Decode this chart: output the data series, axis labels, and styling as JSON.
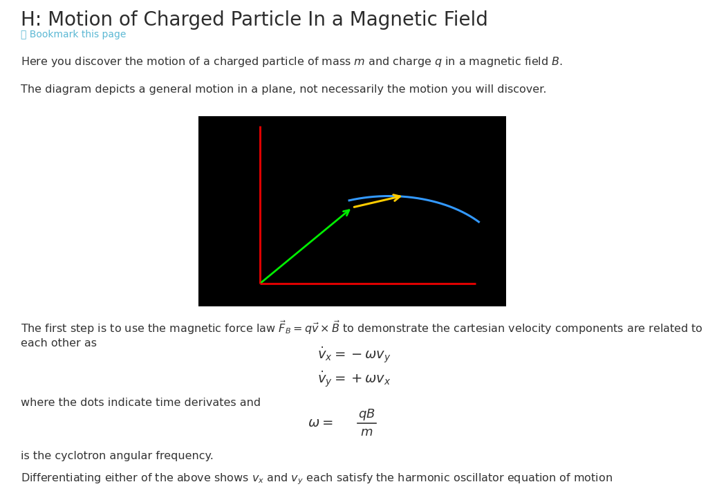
{
  "title": "H: Motion of Charged Particle In a Magnetic Field",
  "bookmark_text": "␔ Bookmark this page",
  "paragraph1": "Here you discover the motion of a charged particle of mass $m$ and charge $q$ in a magnetic field $B$.",
  "paragraph2": "The diagram depicts a general motion in a plane, not necessarily the motion you will discover.",
  "diagram_bg": "#000000",
  "axis_color": "#dd0000",
  "green_line_color": "#00ee00",
  "blue_curve_color": "#3399ff",
  "yellow_arrow_color": "#ffcc00",
  "paragraph3": "The first step is to use the magnetic force law $\\vec{F}_B = q\\vec{v} \\times \\vec{B}$ to demonstrate the cartesian velocity components are related to each other as",
  "eq1": "$\\dot{v}_x = -\\omega v_y$",
  "eq2": "$\\dot{v}_y = +\\omega v_x$",
  "paragraph4": "where the dots indicate time derivates and",
  "eq3_left": "$\\omega = $",
  "eq3_num": "$qB$",
  "eq3_den": "$m$",
  "paragraph5": "is the cyclotron angular frequency.",
  "paragraph6": "Differentiating either of the above shows $v_x$ and $v_y$ each satisfy the harmonic oscillator equation of motion",
  "page_bg": "#ffffff",
  "text_color": "#333333",
  "title_color": "#2c2c2c",
  "bookmark_color": "#5bb8d4"
}
